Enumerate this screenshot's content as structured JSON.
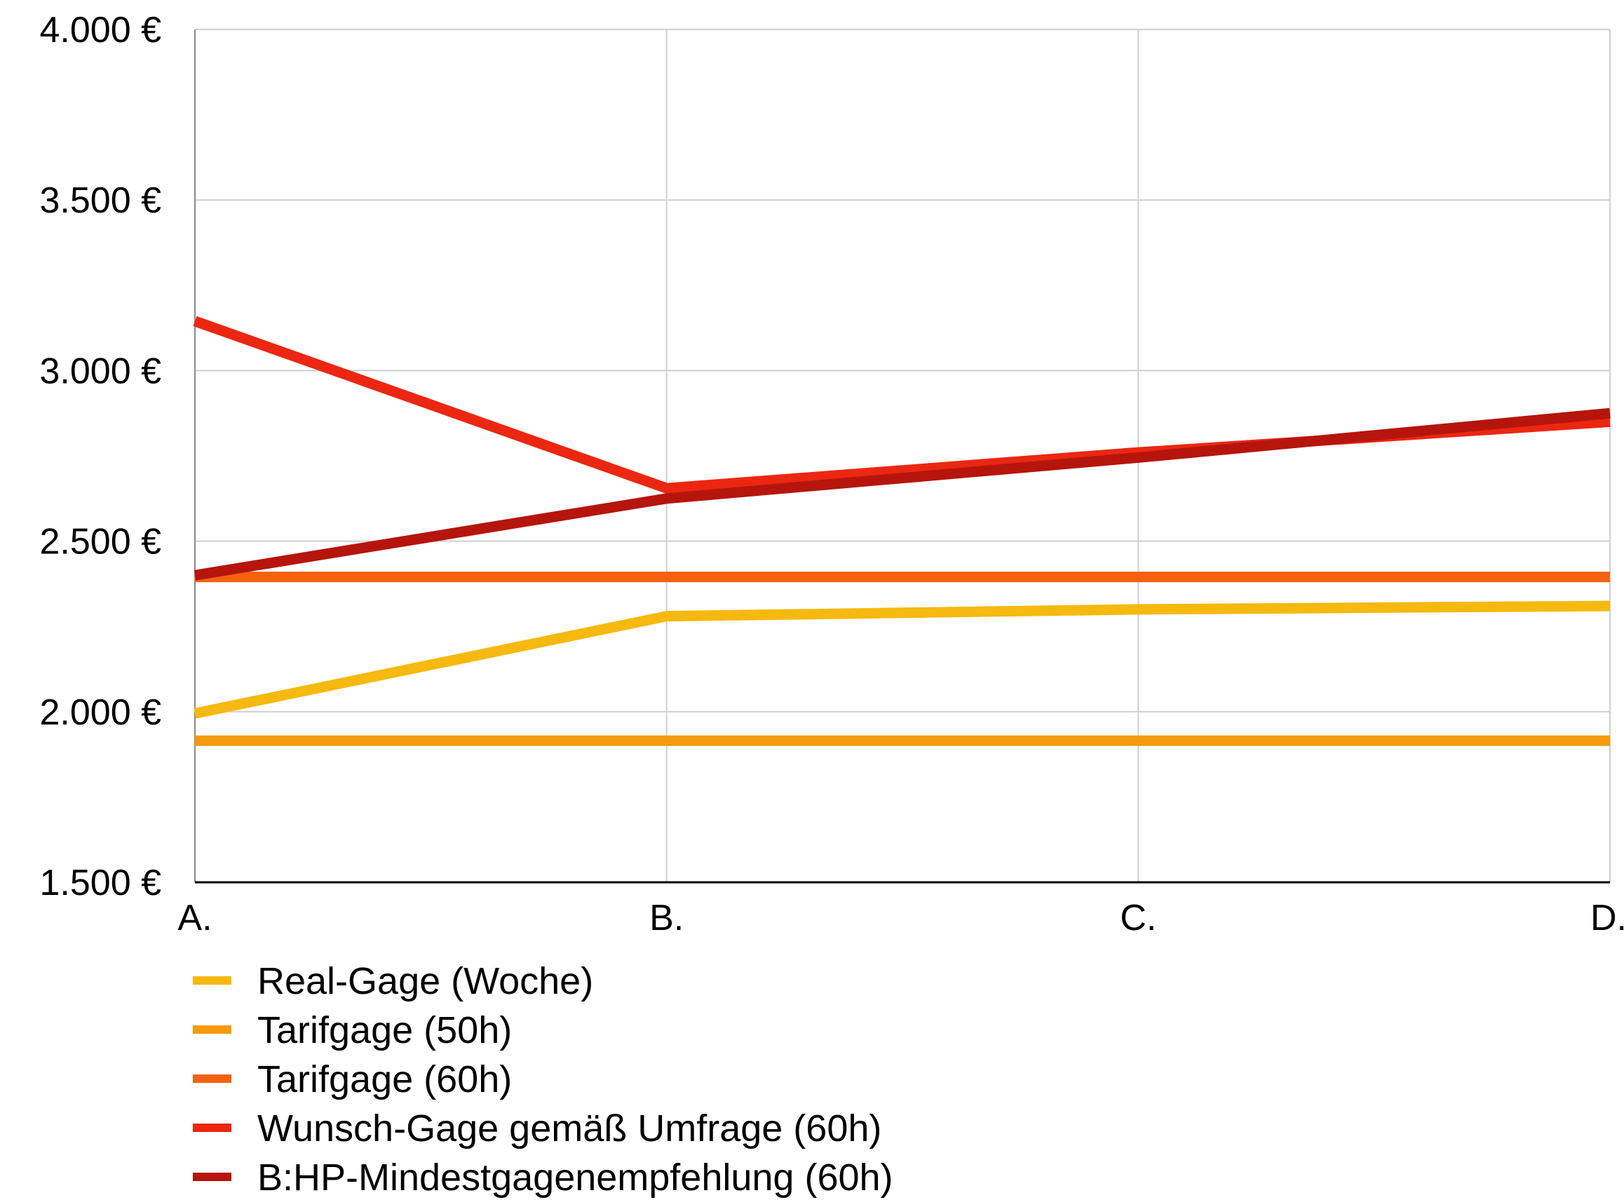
{
  "chart_data": {
    "type": "line",
    "title": "",
    "xlabel": "",
    "ylabel": "",
    "categories": [
      "A.",
      "B.",
      "C.",
      "D."
    ],
    "ylim": [
      1500,
      4000
    ],
    "yticks": [
      1500,
      2000,
      2500,
      3000,
      3500,
      4000
    ],
    "ytick_labels": [
      "1.500 €",
      "2.000 €",
      "2.500 €",
      "3.000 €",
      "3.500 €",
      "4.000 €"
    ],
    "grid": true,
    "legend_position": "bottom-left",
    "series": [
      {
        "name": "Real-Gage (Woche)",
        "color": "#F5B90F",
        "values": [
          1995,
          2280,
          2300,
          2310
        ]
      },
      {
        "name": "Tarifgage (50h)",
        "color": "#F59A0F",
        "values": [
          1915,
          1915,
          1915,
          1915
        ]
      },
      {
        "name": "Tarifgage (60h)",
        "color": "#F4620F",
        "values": [
          2395,
          2395,
          2395,
          2395
        ]
      },
      {
        "name": "Wunsch-Gage gemäß Umfrage (60h)",
        "color": "#EB2712",
        "values": [
          3145,
          2655,
          2760,
          2850
        ]
      },
      {
        "name": "B:HP-Mindestgagenempfehlung (60h)",
        "color": "#B5150C",
        "values": [
          2400,
          2625,
          2745,
          2875
        ]
      }
    ]
  }
}
